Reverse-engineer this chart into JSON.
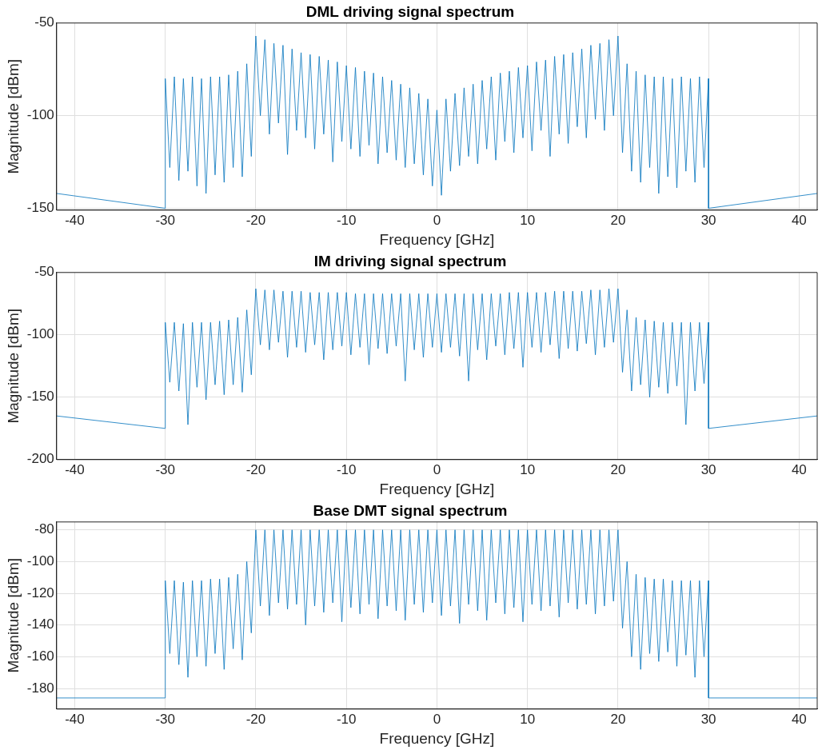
{
  "chart_data": [
    {
      "type": "line",
      "title": "DML driving signal spectrum",
      "xlabel": "Frequency [GHz]",
      "ylabel": "Magnitude [dBm]",
      "x": [
        -42,
        -30,
        -30,
        -29.5,
        -29,
        -28.5,
        -28,
        -27.5,
        -27,
        -26.5,
        -26,
        -25.5,
        -25,
        -24.5,
        -24,
        -23.5,
        -23,
        -22.5,
        -22,
        -21.5,
        -21,
        -20.5,
        -20,
        -19.5,
        -19,
        -18.5,
        -18,
        -17.5,
        -17,
        -16.5,
        -16,
        -15.5,
        -15,
        -14.5,
        -14,
        -13.5,
        -13,
        -12.5,
        -12,
        -11.5,
        -11,
        -10.5,
        -10,
        -9.5,
        -9,
        -8.5,
        -8,
        -7.5,
        -7,
        -6.5,
        -6,
        -5.5,
        -5,
        -4.5,
        -4,
        -3.5,
        -3,
        -2.5,
        -2,
        -1.5,
        -1,
        -0.5,
        0,
        0.5,
        1,
        1.5,
        2,
        2.5,
        3,
        3.5,
        4,
        4.5,
        5,
        5.5,
        6,
        6.5,
        7,
        7.5,
        8,
        8.5,
        9,
        9.5,
        10,
        10.5,
        11,
        11.5,
        12,
        12.5,
        13,
        13.5,
        14,
        14.5,
        15,
        15.5,
        16,
        16.5,
        17,
        17.5,
        18,
        18.5,
        19,
        19.5,
        20,
        20.5,
        21,
        21.5,
        22,
        22.5,
        23,
        23.5,
        24,
        24.5,
        25,
        25.5,
        26,
        26.5,
        27,
        27.5,
        28,
        28.5,
        29,
        29.5,
        30,
        30,
        42
      ],
      "series": [
        {
          "color": "#0072bd",
          "values": [
            -142,
            -150,
            -80,
            -128,
            -79,
            -135,
            -80,
            -130,
            -79,
            -138,
            -80,
            -142,
            -79,
            -132,
            -79,
            -136,
            -78,
            -128,
            -76,
            -133,
            -72,
            -122,
            -57,
            -100,
            -59,
            -110,
            -61,
            -104,
            -62,
            -121,
            -64,
            -108,
            -66,
            -112,
            -67,
            -118,
            -68,
            -110,
            -70,
            -125,
            -71,
            -114,
            -73,
            -118,
            -74,
            -122,
            -76,
            -116,
            -77,
            -126,
            -79,
            -120,
            -81,
            -124,
            -83,
            -128,
            -85,
            -126,
            -88,
            -132,
            -91,
            -138,
            -97,
            -143,
            -91,
            -130,
            -88,
            -127,
            -85,
            -122,
            -83,
            -126,
            -81,
            -118,
            -79,
            -124,
            -77,
            -114,
            -76,
            -120,
            -74,
            -112,
            -73,
            -119,
            -71,
            -108,
            -70,
            -122,
            -68,
            -110,
            -67,
            -115,
            -66,
            -106,
            -64,
            -112,
            -62,
            -102,
            -61,
            -108,
            -59,
            -100,
            -57,
            -120,
            -72,
            -130,
            -76,
            -136,
            -78,
            -128,
            -79,
            -142,
            -79,
            -133,
            -80,
            -139,
            -79,
            -130,
            -80,
            -136,
            -79,
            -128,
            -80,
            -150,
            -142
          ]
        }
      ],
      "xlim": [
        -42,
        42
      ],
      "xticks": [
        -40,
        -30,
        -20,
        -10,
        0,
        10,
        20,
        30,
        40
      ],
      "ylim": [
        -151,
        -50
      ],
      "yticks": [
        -150,
        -100,
        -50
      ],
      "grid": true
    },
    {
      "type": "line",
      "title": "IM driving signal spectrum",
      "xlabel": "Frequency [GHz]",
      "ylabel": "Magnitude [dBm]",
      "x": [
        -42,
        -30,
        -30,
        -29.5,
        -29,
        -28.5,
        -28,
        -27.5,
        -27,
        -26.5,
        -26,
        -25.5,
        -25,
        -24.5,
        -24,
        -23.5,
        -23,
        -22.5,
        -22,
        -21.5,
        -21,
        -20.5,
        -20,
        -19.5,
        -19,
        -18.5,
        -18,
        -17.5,
        -17,
        -16.5,
        -16,
        -15.5,
        -15,
        -14.5,
        -14,
        -13.5,
        -13,
        -12.5,
        -12,
        -11.5,
        -11,
        -10.5,
        -10,
        -9.5,
        -9,
        -8.5,
        -8,
        -7.5,
        -7,
        -6.5,
        -6,
        -5.5,
        -5,
        -4.5,
        -4,
        -3.5,
        -3,
        -2.5,
        -2,
        -1.5,
        -1,
        -0.5,
        0,
        0.5,
        1,
        1.5,
        2,
        2.5,
        3,
        3.5,
        4,
        4.5,
        5,
        5.5,
        6,
        6.5,
        7,
        7.5,
        8,
        8.5,
        9,
        9.5,
        10,
        10.5,
        11,
        11.5,
        12,
        12.5,
        13,
        13.5,
        14,
        14.5,
        15,
        15.5,
        16,
        16.5,
        17,
        17.5,
        18,
        18.5,
        19,
        19.5,
        20,
        20.5,
        21,
        21.5,
        22,
        22.5,
        23,
        23.5,
        24,
        24.5,
        25,
        25.5,
        26,
        26.5,
        27,
        27.5,
        28,
        28.5,
        29,
        29.5,
        30,
        30,
        42
      ],
      "series": [
        {
          "color": "#0072bd",
          "values": [
            -165,
            -175,
            -90,
            -138,
            -90,
            -145,
            -91,
            -172,
            -90,
            -142,
            -90,
            -152,
            -90,
            -140,
            -89,
            -148,
            -88,
            -140,
            -86,
            -146,
            -80,
            -132,
            -63,
            -108,
            -64,
            -112,
            -64,
            -106,
            -65,
            -118,
            -65,
            -110,
            -65,
            -114,
            -66,
            -108,
            -66,
            -120,
            -66,
            -112,
            -66,
            -109,
            -66,
            -116,
            -67,
            -110,
            -67,
            -124,
            -67,
            -111,
            -67,
            -115,
            -67,
            -109,
            -67,
            -137,
            -67,
            -112,
            -67,
            -118,
            -67,
            -110,
            -67,
            -114,
            -67,
            -110,
            -67,
            -117,
            -67,
            -137,
            -67,
            -112,
            -67,
            -120,
            -67,
            -109,
            -67,
            -116,
            -66,
            -111,
            -66,
            -126,
            -66,
            -110,
            -66,
            -114,
            -66,
            -108,
            -65,
            -119,
            -65,
            -111,
            -65,
            -113,
            -65,
            -107,
            -64,
            -116,
            -64,
            -110,
            -63,
            -106,
            -63,
            -130,
            -80,
            -145,
            -86,
            -140,
            -88,
            -150,
            -89,
            -142,
            -90,
            -147,
            -90,
            -141,
            -90,
            -172,
            -90,
            -145,
            -90,
            -139,
            -90,
            -175,
            -165
          ]
        }
      ],
      "xlim": [
        -42,
        42
      ],
      "xticks": [
        -40,
        -30,
        -20,
        -10,
        0,
        10,
        20,
        30,
        40
      ],
      "ylim": [
        -200,
        -50
      ],
      "yticks": [
        -200,
        -150,
        -100,
        -50
      ],
      "grid": true
    },
    {
      "type": "line",
      "title": "Base DMT signal spectrum",
      "xlabel": "Frequency [GHz]",
      "ylabel": "Magnitude [dBm]",
      "x": [
        -42,
        -30,
        -30,
        -29.5,
        -29,
        -28.5,
        -28,
        -27.5,
        -27,
        -26.5,
        -26,
        -25.5,
        -25,
        -24.5,
        -24,
        -23.5,
        -23,
        -22.5,
        -22,
        -21.5,
        -21,
        -20.5,
        -20,
        -19.5,
        -19,
        -18.5,
        -18,
        -17.5,
        -17,
        -16.5,
        -16,
        -15.5,
        -15,
        -14.5,
        -14,
        -13.5,
        -13,
        -12.5,
        -12,
        -11.5,
        -11,
        -10.5,
        -10,
        -9.5,
        -9,
        -8.5,
        -8,
        -7.5,
        -7,
        -6.5,
        -6,
        -5.5,
        -5,
        -4.5,
        -4,
        -3.5,
        -3,
        -2.5,
        -2,
        -1.5,
        -1,
        -0.5,
        0,
        0.5,
        1,
        1.5,
        2,
        2.5,
        3,
        3.5,
        4,
        4.5,
        5,
        5.5,
        6,
        6.5,
        7,
        7.5,
        8,
        8.5,
        9,
        9.5,
        10,
        10.5,
        11,
        11.5,
        12,
        12.5,
        13,
        13.5,
        14,
        14.5,
        15,
        15.5,
        16,
        16.5,
        17,
        17.5,
        18,
        18.5,
        19,
        19.5,
        20,
        20.5,
        21,
        21.5,
        22,
        22.5,
        23,
        23.5,
        24,
        24.5,
        25,
        25.5,
        26,
        26.5,
        27,
        27.5,
        28,
        28.5,
        29,
        29.5,
        30,
        30,
        42
      ],
      "series": [
        {
          "color": "#0072bd",
          "values": [
            -186,
            -186,
            -112,
            -158,
            -112,
            -165,
            -113,
            -173,
            -112,
            -160,
            -112,
            -166,
            -111,
            -158,
            -111,
            -168,
            -110,
            -155,
            -108,
            -162,
            -100,
            -145,
            -80,
            -128,
            -80,
            -134,
            -80,
            -126,
            -80,
            -130,
            -80,
            -127,
            -80,
            -140,
            -80,
            -128,
            -80,
            -132,
            -80,
            -126,
            -80,
            -138,
            -80,
            -129,
            -80,
            -133,
            -80,
            -127,
            -80,
            -136,
            -80,
            -128,
            -80,
            -131,
            -80,
            -137,
            -80,
            -127,
            -80,
            -132,
            -80,
            -126,
            -80,
            -134,
            -80,
            -128,
            -80,
            -139,
            -80,
            -127,
            -80,
            -131,
            -80,
            -137,
            -80,
            -126,
            -80,
            -133,
            -80,
            -129,
            -80,
            -138,
            -80,
            -127,
            -80,
            -131,
            -80,
            -128,
            -80,
            -135,
            -80,
            -126,
            -80,
            -130,
            -80,
            -127,
            -80,
            -133,
            -80,
            -128,
            -80,
            -125,
            -80,
            -142,
            -100,
            -160,
            -108,
            -168,
            -110,
            -158,
            -111,
            -163,
            -111,
            -157,
            -112,
            -166,
            -112,
            -159,
            -112,
            -173,
            -112,
            -160,
            -112,
            -186,
            -186
          ]
        }
      ],
      "xlim": [
        -42,
        42
      ],
      "xticks": [
        -40,
        -30,
        -20,
        -10,
        0,
        10,
        20,
        30,
        40
      ],
      "ylim": [
        -193,
        -75
      ],
      "yticks": [
        -180,
        -160,
        -140,
        -120,
        -100,
        -80
      ],
      "grid": true
    }
  ]
}
